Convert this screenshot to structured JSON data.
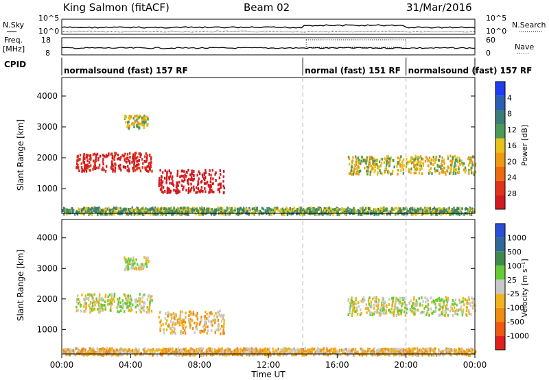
{
  "header": {
    "station": "King Salmon (fitACF)",
    "beam": "Beam 02",
    "date": "31/Mar/2016"
  },
  "noise_panel": {
    "left_label": "N.Sky",
    "right_label": "N.Search",
    "left_ticks": [
      "10^5",
      "10^0"
    ],
    "right_ticks": [
      "10^5",
      "10^0"
    ]
  },
  "freq_panel": {
    "left_label_1": "Freq.",
    "left_label_2": "[MHz]",
    "right_label": "Nave",
    "left_ticks": [
      "18",
      "8"
    ],
    "right_ticks": [
      "60",
      "0"
    ]
  },
  "cpid": {
    "label": "CPID",
    "segments": [
      {
        "text": "normalsound (fast) 157 RF",
        "start_hour": 0,
        "end_hour": 14
      },
      {
        "text": "normal (fast) 151 RF",
        "start_hour": 14,
        "end_hour": 20
      },
      {
        "text": "normalsound (fast) 157 RF",
        "start_hour": 20,
        "end_hour": 24
      }
    ]
  },
  "time_axis": {
    "label": "Time UT",
    "ticks": [
      "00:00",
      "04:00",
      "08:00",
      "12:00",
      "16:00",
      "20:00",
      "00:00"
    ]
  },
  "chart_data": [
    {
      "type": "heatmap",
      "title": "Power",
      "xlabel": "Time UT",
      "ylabel": "Slant Range [km]",
      "xlim": [
        0,
        24
      ],
      "ylim": [
        200,
        4600
      ],
      "y_ticks": [
        "1000",
        "2000",
        "3000",
        "4000"
      ],
      "colorbar": {
        "label": "Power [dB]",
        "ticks": [
          "4",
          "8",
          "12",
          "16",
          "20",
          "24",
          "28"
        ],
        "colors": [
          "#1c3df0",
          "#2a5fb5",
          "#3b7d77",
          "#4a9a5a",
          "#e6c21a",
          "#f09a12",
          "#ee6a10",
          "#e03318",
          "#d31a1f"
        ]
      },
      "regions": [
        {
          "t": [
            0.8,
            5.2
          ],
          "r": [
            1600,
            2200
          ],
          "level": 8
        },
        {
          "t": [
            5.6,
            9.4
          ],
          "r": [
            900,
            1650
          ],
          "level": 9
        },
        {
          "t": [
            3.6,
            5.0
          ],
          "r": [
            3000,
            3400
          ],
          "level": 4
        },
        {
          "t": [
            16.6,
            24.0
          ],
          "r": [
            1500,
            2100
          ],
          "level": 4
        },
        {
          "t": [
            0.0,
            24.0
          ],
          "r": [
            200,
            420
          ],
          "level": 3
        }
      ]
    },
    {
      "type": "heatmap",
      "title": "Velocity",
      "xlabel": "Time UT",
      "ylabel": "Slant Range [km]",
      "xlim": [
        0,
        24
      ],
      "ylim": [
        200,
        4600
      ],
      "y_ticks": [
        "1000",
        "2000",
        "3000",
        "4000"
      ],
      "colorbar": {
        "label": "Velocity [m s⁻¹]",
        "ticks": [
          "1000",
          "500",
          "100",
          "25",
          "-25",
          "-100",
          "-500",
          "-1000"
        ],
        "colors": [
          "#2a4fd6",
          "#2f6a96",
          "#3f8a4a",
          "#66cc33",
          "#c8c8c8",
          "#f0b41a",
          "#f08c10",
          "#ee5a10",
          "#e0201c"
        ]
      },
      "regions": [
        {
          "t": [
            0.8,
            5.2
          ],
          "r": [
            1600,
            2200
          ],
          "level": 4
        },
        {
          "t": [
            5.6,
            9.4
          ],
          "r": [
            900,
            1650
          ],
          "level": 5
        },
        {
          "t": [
            3.6,
            5.0
          ],
          "r": [
            3000,
            3400
          ],
          "level": 4
        },
        {
          "t": [
            16.6,
            24.0
          ],
          "r": [
            1500,
            2100
          ],
          "level": 4
        },
        {
          "t": [
            0.0,
            24.0
          ],
          "r": [
            200,
            420
          ],
          "level": 5
        }
      ]
    }
  ]
}
